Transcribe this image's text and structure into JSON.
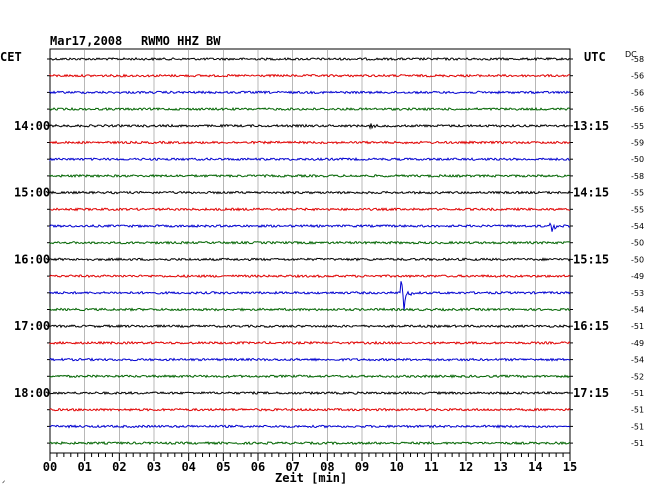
{
  "header": {
    "date": "Mar17,2008",
    "station": "RWMO HHZ BW"
  },
  "left_label": "CET",
  "right_label": "UTC",
  "dc_label": "DC",
  "corner_mark": "ᐟ",
  "colors": {
    "row_cycle": [
      "#000000",
      "#e00000",
      "#0000d0",
      "#006400"
    ],
    "grid": "#888888"
  },
  "chart_data": {
    "type": "line",
    "title": "Mar17,2008   RWMO HHZ BW",
    "xlabel": "Zeit [min]",
    "xlim": [
      0,
      15
    ],
    "x_ticks": [
      "00",
      "01",
      "02",
      "03",
      "04",
      "05",
      "06",
      "07",
      "08",
      "09",
      "10",
      "11",
      "12",
      "13",
      "14",
      "15"
    ],
    "rows": 24,
    "left_hour_labels": [
      {
        "row": 4,
        "text": "14:00"
      },
      {
        "row": 8,
        "text": "15:00"
      },
      {
        "row": 12,
        "text": "16:00"
      },
      {
        "row": 16,
        "text": "17:00"
      },
      {
        "row": 20,
        "text": "18:00"
      }
    ],
    "right_hour_labels": [
      {
        "row": 4,
        "text": "13:15"
      },
      {
        "row": 8,
        "text": "14:15"
      },
      {
        "row": 12,
        "text": "15:15"
      },
      {
        "row": 16,
        "text": "16:15"
      },
      {
        "row": 20,
        "text": "17:15"
      }
    ],
    "dc_offsets": [
      -58,
      -56,
      -56,
      -56,
      -55,
      -59,
      -50,
      -58,
      -55,
      -55,
      -54,
      -50,
      -50,
      -49,
      -53,
      -54,
      -51,
      -49,
      -54,
      -52,
      -51,
      -51,
      -51,
      -51
    ],
    "events": [
      {
        "row": 4,
        "minute": 9.3,
        "amplitude": 3
      },
      {
        "row": 10,
        "minute": 14.5,
        "amplitude": 6
      },
      {
        "row": 14,
        "minute": 10.2,
        "amplitude": 20
      }
    ],
    "grid": true
  }
}
